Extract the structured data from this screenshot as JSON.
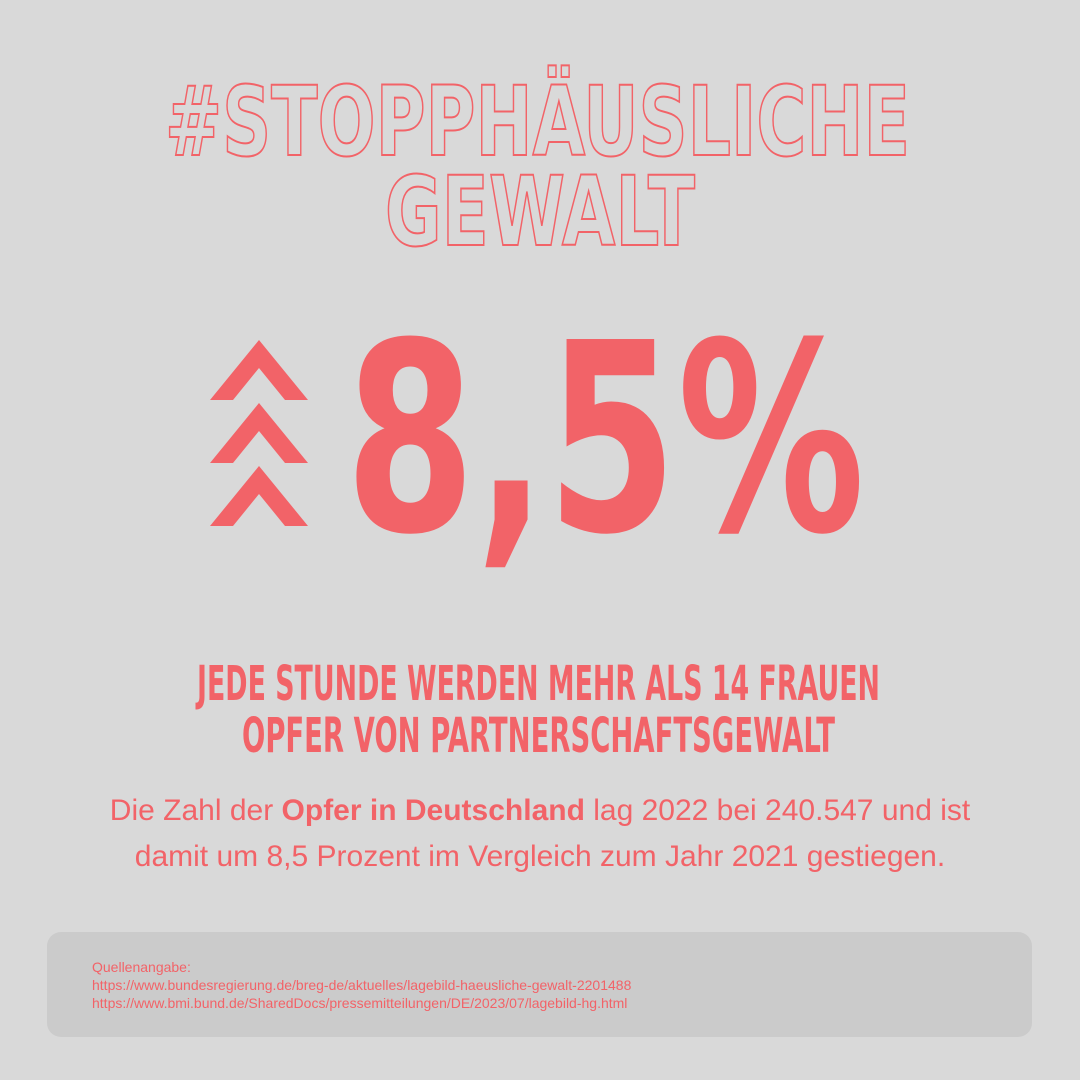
{
  "headline": {
    "lines": [
      "#STOPPHÄUSLICHE",
      "GEWALT"
    ]
  },
  "stat": "8,5%",
  "subheadline": {
    "lines": [
      "JEDE STUNDE WERDEN MEHR ALS 14 FRAUEN",
      "OPFER VON PARTNERSCHAFTSGEWALT"
    ]
  },
  "body": {
    "line1": [
      "Die Zahl der ",
      "Opfer in Deutschland",
      " lag 2022 bei 240.547 und ist"
    ],
    "line2": "damit um 8,5 Prozent im Vergleich zum Jahr 2021 gestiegen."
  },
  "sources": {
    "label": "Quellenangabe:",
    "links": [
      "https://www.bundesregierung.de/breg-de/aktuelles/lagebild-haeusliche-gewalt-2201488",
      "https://www.bmi.bund.de/SharedDocs/pressemitteilungen/DE/2023/07/lagebild-hg.html"
    ]
  }
}
